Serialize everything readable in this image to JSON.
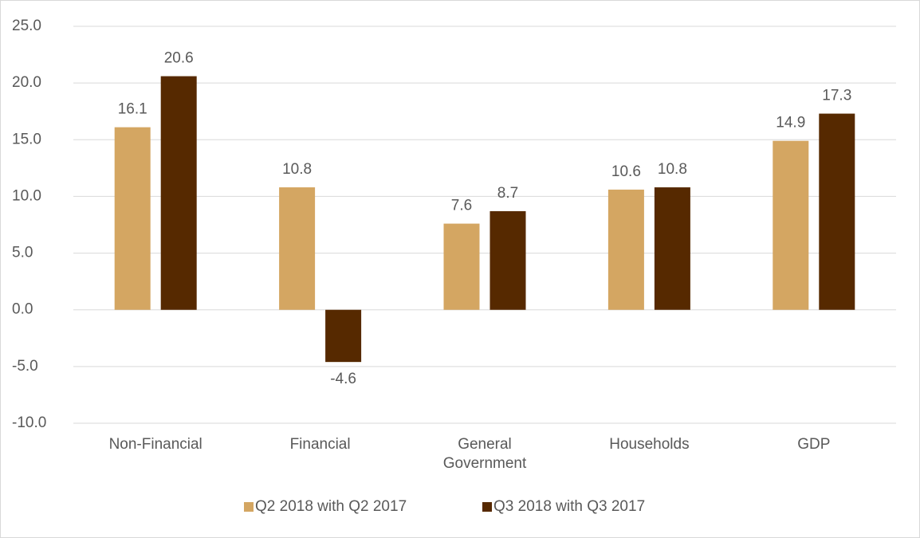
{
  "chart_data": {
    "type": "bar",
    "categories": [
      "Non-Financial",
      "Financial",
      "General Government",
      "Households",
      "GDP"
    ],
    "series": [
      {
        "name": "Q2 2018 with Q2 2017",
        "color": "#d4a662",
        "values": [
          16.1,
          10.8,
          7.6,
          10.6,
          14.9
        ]
      },
      {
        "name": "Q3 2018 with Q3 2017",
        "color": "#562900",
        "values": [
          20.6,
          -4.6,
          8.7,
          10.8,
          17.3
        ]
      }
    ],
    "ylim": [
      -10,
      25
    ],
    "yticks": [
      {
        "value": -10,
        "label": "-10.0"
      },
      {
        "value": -5,
        "label": "-5.0"
      },
      {
        "value": 0,
        "label": "0.0"
      },
      {
        "value": 5,
        "label": "5.0"
      },
      {
        "value": 10,
        "label": "10.0"
      },
      {
        "value": 15,
        "label": "15.0"
      },
      {
        "value": 20,
        "label": "20.0"
      },
      {
        "value": 25,
        "label": "25.0"
      }
    ],
    "grid": true,
    "legend": "bottom"
  }
}
